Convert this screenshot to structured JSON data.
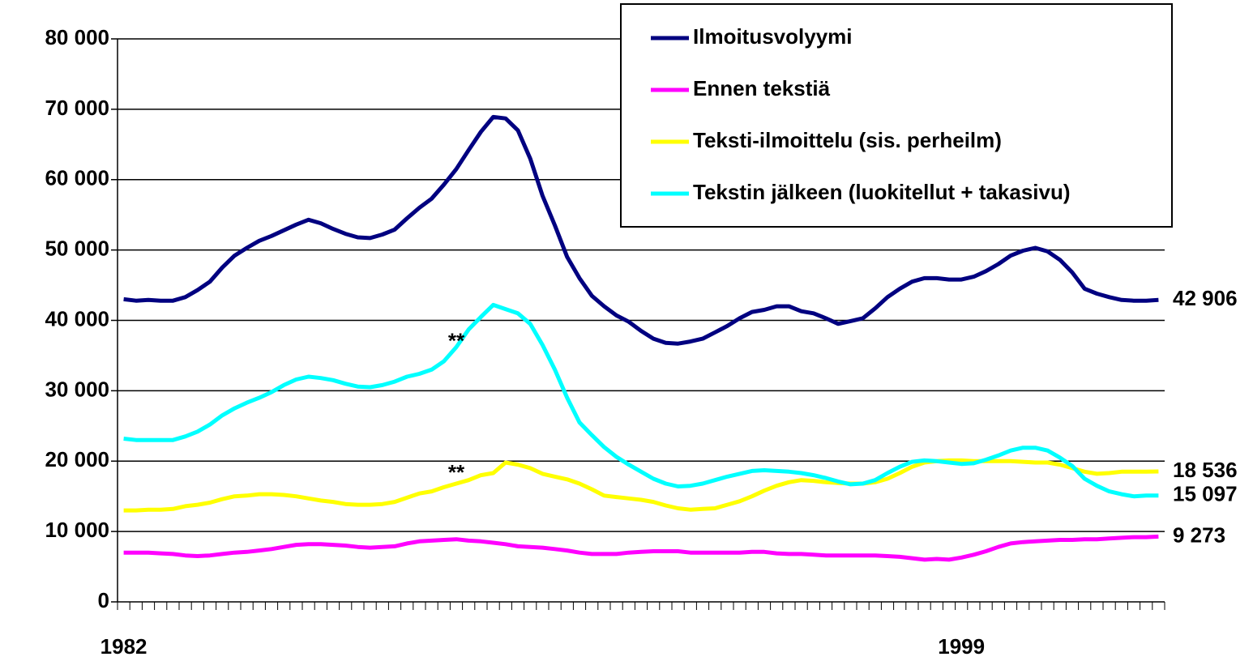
{
  "chart_data": {
    "type": "line",
    "categories": [
      "1982",
      null,
      null,
      null,
      null,
      null,
      null,
      null,
      null,
      null,
      null,
      null,
      null,
      null,
      null,
      null,
      null,
      null,
      null,
      null,
      null,
      null,
      null,
      null,
      null,
      null,
      null,
      null,
      null,
      null,
      null,
      null,
      null,
      null,
      null,
      null,
      null,
      null,
      null,
      null,
      null,
      null,
      null,
      null,
      null,
      null,
      null,
      null,
      null,
      null,
      null,
      null,
      null,
      null,
      null,
      null,
      null,
      null,
      null,
      null,
      null,
      null,
      null,
      null,
      null,
      null,
      null,
      null,
      "1999",
      null,
      null,
      null,
      null,
      null,
      null,
      null,
      null,
      null,
      null,
      null,
      null,
      null,
      null,
      null,
      null
    ],
    "series": [
      {
        "name": "Ilmoitusvolyymi",
        "color": "#000080",
        "end_label": "42 906",
        "values": [
          43000,
          42800,
          42900,
          42800,
          42800,
          43300,
          44300,
          45500,
          47500,
          49200,
          50300,
          51300,
          52000,
          52800,
          53600,
          54300,
          53800,
          53000,
          52300,
          51800,
          51700,
          52200,
          52900,
          54500,
          56000,
          57300,
          59300,
          61500,
          64200,
          66800,
          68900,
          68700,
          67000,
          63000,
          57700,
          53500,
          49000,
          46000,
          43500,
          42000,
          40700,
          39800,
          38500,
          37400,
          36800,
          36700,
          37000,
          37400,
          38300,
          39200,
          40300,
          41200,
          41500,
          42000,
          42000,
          41300,
          41000,
          40300,
          39500,
          39900,
          40300,
          41700,
          43300,
          44500,
          45500,
          46000,
          46000,
          45800,
          45800,
          46200,
          47000,
          48000,
          49200,
          49900,
          50300,
          49800,
          48600,
          46800,
          44500,
          43800,
          43300,
          42900,
          42800,
          42800,
          42906
        ]
      },
      {
        "name": "Ennen tekstiä",
        "color": "#ff00ff",
        "end_label": "9 273",
        "values": [
          7000,
          7000,
          7000,
          6900,
          6800,
          6600,
          6500,
          6600,
          6800,
          7000,
          7100,
          7300,
          7500,
          7800,
          8100,
          8200,
          8200,
          8100,
          8000,
          7800,
          7700,
          7800,
          7900,
          8300,
          8600,
          8700,
          8800,
          8900,
          8700,
          8600,
          8400,
          8200,
          7900,
          7800,
          7700,
          7500,
          7300,
          7000,
          6800,
          6800,
          6800,
          7000,
          7100,
          7200,
          7200,
          7200,
          7000,
          7000,
          7000,
          7000,
          7000,
          7100,
          7100,
          6900,
          6800,
          6800,
          6700,
          6600,
          6600,
          6600,
          6600,
          6600,
          6500,
          6400,
          6200,
          6000,
          6100,
          6000,
          6300,
          6700,
          7200,
          7800,
          8300,
          8500,
          8600,
          8700,
          8800,
          8800,
          8900,
          8900,
          9000,
          9100,
          9200,
          9200,
          9273
        ]
      },
      {
        "name": "Teksti-ilmoittelu (sis. perheilm)",
        "color": "#ffff00",
        "end_label": "18 536",
        "values": [
          13000,
          13000,
          13100,
          13100,
          13200,
          13600,
          13800,
          14100,
          14600,
          15000,
          15100,
          15300,
          15300,
          15200,
          15000,
          14700,
          14400,
          14200,
          13900,
          13800,
          13800,
          13900,
          14200,
          14800,
          15400,
          15700,
          16300,
          16800,
          17300,
          18000,
          18300,
          19800,
          19500,
          19000,
          18200,
          17800,
          17400,
          16800,
          16000,
          15100,
          14900,
          14700,
          14500,
          14200,
          13700,
          13300,
          13100,
          13200,
          13300,
          13800,
          14300,
          15000,
          15800,
          16500,
          17000,
          17300,
          17200,
          17000,
          16900,
          16800,
          16800,
          17000,
          17500,
          18300,
          19200,
          19800,
          20000,
          20100,
          20100,
          20000,
          20000,
          20000,
          20000,
          19900,
          19800,
          19800,
          19500,
          19000,
          18500,
          18200,
          18300,
          18500,
          18500,
          18500,
          18536
        ]
      },
      {
        "name": "Tekstin jälkeen (luokitellut + takasivu)",
        "color": "#00ffff",
        "end_label": "15 097",
        "values": [
          23200,
          23000,
          23000,
          23000,
          23000,
          23500,
          24200,
          25200,
          26500,
          27500,
          28300,
          29000,
          29800,
          30800,
          31600,
          32000,
          31800,
          31500,
          31000,
          30600,
          30500,
          30800,
          31300,
          32000,
          32400,
          33000,
          34200,
          36200,
          38700,
          40500,
          42200,
          41600,
          41000,
          39500,
          36500,
          33000,
          29000,
          25500,
          23700,
          22000,
          20600,
          19500,
          18500,
          17500,
          16800,
          16400,
          16500,
          16800,
          17300,
          17800,
          18200,
          18600,
          18700,
          18600,
          18500,
          18300,
          18000,
          17600,
          17100,
          16700,
          16800,
          17300,
          18300,
          19200,
          19900,
          20100,
          20000,
          19800,
          19600,
          19700,
          20200,
          20800,
          21500,
          21900,
          21900,
          21500,
          20500,
          19300,
          17500,
          16500,
          15700,
          15300,
          15000,
          15100,
          15097
        ]
      }
    ],
    "annotations": [
      {
        "text": "**",
        "x": 27,
        "y": 36900
      },
      {
        "text": "**",
        "x": 27,
        "y": 18200
      }
    ],
    "ylim": [
      0,
      80000
    ],
    "yticks": [
      0,
      {
        "value": 10000,
        "label": "10 000"
      },
      {
        "value": 20000,
        "label": "20 000"
      },
      {
        "value": 30000,
        "label": "30 000"
      },
      {
        "value": 40000,
        "label": "40 000"
      },
      {
        "value": 50000,
        "label": "50 000"
      },
      {
        "value": 60000,
        "label": "60 000"
      },
      {
        "value": 70000,
        "label": "70 000"
      },
      {
        "value": 80000,
        "label": "80 000"
      }
    ],
    "grid": true,
    "legend": "top-right"
  }
}
